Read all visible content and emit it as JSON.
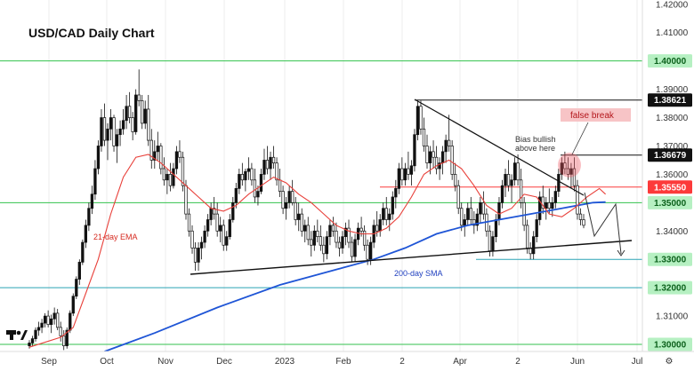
{
  "chart_data": {
    "type": "candlestick",
    "title": "USD/CAD Daily Chart",
    "ylim": [
      1.2975,
      1.4215
    ],
    "y_ticks": [
      "1.42000",
      "1.41000",
      "1.40000",
      "1.39000",
      "1.38621",
      "1.38000",
      "1.37000",
      "1.36679",
      "1.36000",
      "1.35550",
      "1.35000",
      "1.34000",
      "1.33000",
      "1.32000",
      "1.31000",
      "1.30000"
    ],
    "x_ticks": [
      "Sep",
      "Oct",
      "Nov",
      "Dec",
      "2023",
      "Feb",
      "2",
      "Apr",
      "2",
      "Jun",
      "Jul"
    ],
    "badges": [
      {
        "label": "1.40000",
        "value": 1.4,
        "bg": "#b6f0c2",
        "fg": "#0a5f1a"
      },
      {
        "label": "1.38621",
        "value": 1.38621,
        "bg": "#111111",
        "fg": "#ffffff"
      },
      {
        "label": "1.36679",
        "value": 1.36679,
        "bg": "#111111",
        "fg": "#ffffff"
      },
      {
        "label": "1.35550",
        "value": 1.3555,
        "bg": "#fc3a3a",
        "fg": "#ffffff"
      },
      {
        "label": "1.35000",
        "value": 1.35,
        "bg": "#b6f0c2",
        "fg": "#0a5f1a"
      },
      {
        "label": "1.33000",
        "value": 1.33,
        "bg": "#b6f0c2",
        "fg": "#0a5f1a"
      },
      {
        "label": "1.32000",
        "value": 1.32,
        "bg": "#b6f0c2",
        "fg": "#0a5f1a"
      },
      {
        "label": "1.30000",
        "value": 1.3,
        "bg": "#b6f0c2",
        "fg": "#0a5f1a"
      }
    ],
    "ohlc": [
      [
        1.2995,
        1.3015,
        1.2985,
        1.3005
      ],
      [
        1.3005,
        1.303,
        1.2995,
        1.302
      ],
      [
        1.302,
        1.306,
        1.301,
        1.305
      ],
      [
        1.305,
        1.308,
        1.303,
        1.306
      ],
      [
        1.306,
        1.309,
        1.304,
        1.3075
      ],
      [
        1.3075,
        1.311,
        1.306,
        1.31
      ],
      [
        1.31,
        1.312,
        1.306,
        1.307
      ],
      [
        1.307,
        1.3105,
        1.304,
        1.309
      ],
      [
        1.309,
        1.313,
        1.307,
        1.311
      ],
      [
        1.311,
        1.3125,
        1.305,
        1.306
      ],
      [
        1.306,
        1.308,
        1.301,
        1.303
      ],
      [
        1.303,
        1.305,
        1.298,
        1.2995
      ],
      [
        1.2995,
        1.306,
        1.2985,
        1.305
      ],
      [
        1.305,
        1.312,
        1.304,
        1.311
      ],
      [
        1.311,
        1.318,
        1.31,
        1.317
      ],
      [
        1.317,
        1.324,
        1.316,
        1.323
      ],
      [
        1.323,
        1.33,
        1.321,
        1.329
      ],
      [
        1.329,
        1.337,
        1.328,
        1.336
      ],
      [
        1.336,
        1.344,
        1.334,
        1.342
      ],
      [
        1.342,
        1.35,
        1.34,
        1.348
      ],
      [
        1.348,
        1.356,
        1.346,
        1.353
      ],
      [
        1.353,
        1.365,
        1.351,
        1.362
      ],
      [
        1.362,
        1.372,
        1.36,
        1.37
      ],
      [
        1.37,
        1.383,
        1.368,
        1.38
      ],
      [
        1.38,
        1.385,
        1.37,
        1.372
      ],
      [
        1.372,
        1.378,
        1.365,
        1.376
      ],
      [
        1.376,
        1.383,
        1.372,
        1.38
      ],
      [
        1.38,
        1.381,
        1.368,
        1.37
      ],
      [
        1.37,
        1.376,
        1.364,
        1.374
      ],
      [
        1.374,
        1.379,
        1.37,
        1.376
      ],
      [
        1.376,
        1.383,
        1.374,
        1.379
      ],
      [
        1.379,
        1.388,
        1.376,
        1.384
      ],
      [
        1.384,
        1.389,
        1.378,
        1.38
      ],
      [
        1.38,
        1.382,
        1.372,
        1.375
      ],
      [
        1.375,
        1.39,
        1.374,
        1.388
      ],
      [
        1.388,
        1.397,
        1.384,
        1.386
      ],
      [
        1.386,
        1.388,
        1.376,
        1.378
      ],
      [
        1.378,
        1.386,
        1.376,
        1.383
      ],
      [
        1.383,
        1.388,
        1.37,
        1.372
      ],
      [
        1.372,
        1.376,
        1.362,
        1.365
      ],
      [
        1.365,
        1.372,
        1.362,
        1.368
      ],
      [
        1.368,
        1.375,
        1.365,
        1.37
      ],
      [
        1.37,
        1.371,
        1.36,
        1.362
      ],
      [
        1.362,
        1.366,
        1.356,
        1.358
      ],
      [
        1.358,
        1.362,
        1.353,
        1.36
      ],
      [
        1.36,
        1.364,
        1.354,
        1.356
      ],
      [
        1.356,
        1.364,
        1.355,
        1.362
      ],
      [
        1.362,
        1.37,
        1.36,
        1.368
      ],
      [
        1.368,
        1.372,
        1.364,
        1.366
      ],
      [
        1.366,
        1.368,
        1.354,
        1.356
      ],
      [
        1.356,
        1.358,
        1.344,
        1.346
      ],
      [
        1.346,
        1.348,
        1.338,
        1.34
      ],
      [
        1.34,
        1.342,
        1.332,
        1.334
      ],
      [
        1.334,
        1.336,
        1.326,
        1.329
      ],
      [
        1.329,
        1.336,
        1.326,
        1.334
      ],
      [
        1.334,
        1.338,
        1.33,
        1.336
      ],
      [
        1.336,
        1.342,
        1.334,
        1.34
      ],
      [
        1.34,
        1.346,
        1.338,
        1.344
      ],
      [
        1.344,
        1.35,
        1.342,
        1.348
      ],
      [
        1.348,
        1.352,
        1.344,
        1.346
      ],
      [
        1.346,
        1.35,
        1.338,
        1.34
      ],
      [
        1.34,
        1.345,
        1.336,
        1.342
      ],
      [
        1.342,
        1.344,
        1.333,
        1.335
      ],
      [
        1.335,
        1.34,
        1.333,
        1.338
      ],
      [
        1.338,
        1.346,
        1.337,
        1.344
      ],
      [
        1.344,
        1.352,
        1.343,
        1.35
      ],
      [
        1.35,
        1.357,
        1.348,
        1.355
      ],
      [
        1.355,
        1.362,
        1.353,
        1.36
      ],
      [
        1.36,
        1.364,
        1.356,
        1.358
      ],
      [
        1.358,
        1.362,
        1.354,
        1.361
      ],
      [
        1.361,
        1.366,
        1.358,
        1.362
      ],
      [
        1.362,
        1.364,
        1.356,
        1.358
      ],
      [
        1.358,
        1.362,
        1.35,
        1.352
      ],
      [
        1.352,
        1.356,
        1.349,
        1.354
      ],
      [
        1.354,
        1.362,
        1.353,
        1.36
      ],
      [
        1.36,
        1.369,
        1.358,
        1.365
      ],
      [
        1.365,
        1.37,
        1.36,
        1.362
      ],
      [
        1.362,
        1.368,
        1.358,
        1.366
      ],
      [
        1.366,
        1.37,
        1.362,
        1.364
      ],
      [
        1.364,
        1.366,
        1.356,
        1.358
      ],
      [
        1.358,
        1.362,
        1.352,
        1.354
      ],
      [
        1.354,
        1.356,
        1.346,
        1.348
      ],
      [
        1.348,
        1.352,
        1.344,
        1.35
      ],
      [
        1.35,
        1.356,
        1.348,
        1.354
      ],
      [
        1.354,
        1.358,
        1.349,
        1.35
      ],
      [
        1.35,
        1.352,
        1.342,
        1.344
      ],
      [
        1.344,
        1.35,
        1.34,
        1.346
      ],
      [
        1.346,
        1.348,
        1.338,
        1.34
      ],
      [
        1.34,
        1.344,
        1.336,
        1.342
      ],
      [
        1.342,
        1.345,
        1.335,
        1.337
      ],
      [
        1.337,
        1.34,
        1.331,
        1.335
      ],
      [
        1.335,
        1.342,
        1.333,
        1.34
      ],
      [
        1.34,
        1.344,
        1.336,
        1.338
      ],
      [
        1.338,
        1.342,
        1.333,
        1.335
      ],
      [
        1.335,
        1.338,
        1.329,
        1.332
      ],
      [
        1.332,
        1.34,
        1.33,
        1.338
      ],
      [
        1.338,
        1.344,
        1.335,
        1.342
      ],
      [
        1.342,
        1.345,
        1.338,
        1.34
      ],
      [
        1.34,
        1.343,
        1.334,
        1.336
      ],
      [
        1.336,
        1.338,
        1.331,
        1.334
      ],
      [
        1.334,
        1.34,
        1.332,
        1.338
      ],
      [
        1.338,
        1.343,
        1.335,
        1.341
      ],
      [
        1.341,
        1.344,
        1.334,
        1.336
      ],
      [
        1.336,
        1.338,
        1.329,
        1.331
      ],
      [
        1.331,
        1.339,
        1.329,
        1.337
      ],
      [
        1.337,
        1.343,
        1.335,
        1.341
      ],
      [
        1.341,
        1.345,
        1.338,
        1.34
      ],
      [
        1.34,
        1.342,
        1.333,
        1.335
      ],
      [
        1.335,
        1.337,
        1.328,
        1.33
      ],
      [
        1.33,
        1.338,
        1.328,
        1.336
      ],
      [
        1.336,
        1.344,
        1.334,
        1.342
      ],
      [
        1.342,
        1.347,
        1.338,
        1.34
      ],
      [
        1.34,
        1.346,
        1.338,
        1.344
      ],
      [
        1.344,
        1.35,
        1.342,
        1.348
      ],
      [
        1.348,
        1.352,
        1.342,
        1.344
      ],
      [
        1.344,
        1.348,
        1.34,
        1.346
      ],
      [
        1.346,
        1.354,
        1.344,
        1.352
      ],
      [
        1.352,
        1.358,
        1.348,
        1.355
      ],
      [
        1.355,
        1.364,
        1.353,
        1.362
      ],
      [
        1.362,
        1.366,
        1.356,
        1.358
      ],
      [
        1.358,
        1.364,
        1.356,
        1.362
      ],
      [
        1.362,
        1.368,
        1.358,
        1.36
      ],
      [
        1.36,
        1.365,
        1.356,
        1.363
      ],
      [
        1.363,
        1.376,
        1.361,
        1.374
      ],
      [
        1.374,
        1.386,
        1.372,
        1.384
      ],
      [
        1.384,
        1.386,
        1.374,
        1.376
      ],
      [
        1.376,
        1.38,
        1.368,
        1.37
      ],
      [
        1.37,
        1.374,
        1.362,
        1.364
      ],
      [
        1.364,
        1.37,
        1.36,
        1.368
      ],
      [
        1.368,
        1.372,
        1.362,
        1.366
      ],
      [
        1.366,
        1.37,
        1.36,
        1.362
      ],
      [
        1.362,
        1.366,
        1.358,
        1.364
      ],
      [
        1.364,
        1.37,
        1.36,
        1.368
      ],
      [
        1.368,
        1.374,
        1.364,
        1.372
      ],
      [
        1.372,
        1.381,
        1.368,
        1.37
      ],
      [
        1.37,
        1.372,
        1.358,
        1.36
      ],
      [
        1.36,
        1.364,
        1.354,
        1.356
      ],
      [
        1.356,
        1.358,
        1.346,
        1.348
      ],
      [
        1.348,
        1.35,
        1.34,
        1.342
      ],
      [
        1.342,
        1.346,
        1.338,
        1.344
      ],
      [
        1.344,
        1.35,
        1.342,
        1.348
      ],
      [
        1.348,
        1.352,
        1.342,
        1.344
      ],
      [
        1.344,
        1.347,
        1.339,
        1.342
      ],
      [
        1.342,
        1.348,
        1.34,
        1.346
      ],
      [
        1.346,
        1.352,
        1.343,
        1.35
      ],
      [
        1.35,
        1.354,
        1.344,
        1.346
      ],
      [
        1.346,
        1.348,
        1.338,
        1.34
      ],
      [
        1.34,
        1.342,
        1.331,
        1.333
      ],
      [
        1.333,
        1.34,
        1.331,
        1.338
      ],
      [
        1.338,
        1.346,
        1.336,
        1.344
      ],
      [
        1.344,
        1.352,
        1.342,
        1.35
      ],
      [
        1.35,
        1.358,
        1.348,
        1.356
      ],
      [
        1.356,
        1.362,
        1.352,
        1.36
      ],
      [
        1.36,
        1.365,
        1.354,
        1.356
      ],
      [
        1.356,
        1.36,
        1.35,
        1.358
      ],
      [
        1.358,
        1.366,
        1.356,
        1.364
      ],
      [
        1.364,
        1.367,
        1.356,
        1.358
      ],
      [
        1.358,
        1.362,
        1.348,
        1.35
      ],
      [
        1.35,
        1.352,
        1.34,
        1.342
      ],
      [
        1.342,
        1.344,
        1.332,
        1.334
      ],
      [
        1.334,
        1.336,
        1.33,
        1.332
      ],
      [
        1.332,
        1.34,
        1.33,
        1.338
      ],
      [
        1.338,
        1.346,
        1.336,
        1.344
      ],
      [
        1.344,
        1.354,
        1.342,
        1.352
      ],
      [
        1.352,
        1.356,
        1.346,
        1.348
      ],
      [
        1.348,
        1.352,
        1.344,
        1.35
      ],
      [
        1.35,
        1.355,
        1.346,
        1.348
      ],
      [
        1.348,
        1.352,
        1.345,
        1.35
      ],
      [
        1.35,
        1.356,
        1.348,
        1.354
      ],
      [
        1.354,
        1.362,
        1.352,
        1.36
      ],
      [
        1.36,
        1.366,
        1.358,
        1.364
      ],
      [
        1.364,
        1.368,
        1.36,
        1.362
      ],
      [
        1.362,
        1.366,
        1.358,
        1.36
      ],
      [
        1.36,
        1.364,
        1.355,
        1.362
      ],
      [
        1.362,
        1.366,
        1.354,
        1.356
      ],
      [
        1.356,
        1.358,
        1.344,
        1.346
      ],
      [
        1.346,
        1.348,
        1.342,
        1.344
      ],
      [
        1.344,
        1.346,
        1.341,
        1.342
      ]
    ],
    "ema21": [
      [
        0,
        1.299
      ],
      [
        10,
        1.3025
      ],
      [
        14,
        1.306
      ],
      [
        18,
        1.318
      ],
      [
        22,
        1.33
      ],
      [
        26,
        1.346
      ],
      [
        30,
        1.359
      ],
      [
        34,
        1.366
      ],
      [
        38,
        1.367
      ],
      [
        42,
        1.364
      ],
      [
        46,
        1.36
      ],
      [
        50,
        1.356
      ],
      [
        54,
        1.352
      ],
      [
        58,
        1.348
      ],
      [
        62,
        1.347
      ],
      [
        66,
        1.349
      ],
      [
        70,
        1.353
      ],
      [
        74,
        1.356
      ],
      [
        78,
        1.359
      ],
      [
        82,
        1.357
      ],
      [
        86,
        1.353
      ],
      [
        90,
        1.35
      ],
      [
        94,
        1.346
      ],
      [
        98,
        1.342
      ],
      [
        102,
        1.34
      ],
      [
        106,
        1.339
      ],
      [
        110,
        1.339
      ],
      [
        114,
        1.341
      ],
      [
        118,
        1.345
      ],
      [
        122,
        1.352
      ],
      [
        126,
        1.36
      ],
      [
        130,
        1.363
      ],
      [
        134,
        1.365
      ],
      [
        138,
        1.362
      ],
      [
        142,
        1.356
      ],
      [
        146,
        1.349
      ],
      [
        150,
        1.346
      ],
      [
        154,
        1.348
      ],
      [
        158,
        1.353
      ],
      [
        162,
        1.352
      ],
      [
        166,
        1.346
      ],
      [
        170,
        1.345
      ],
      [
        174,
        1.348
      ],
      [
        178,
        1.352
      ],
      [
        182,
        1.355
      ],
      [
        184,
        1.353
      ]
    ],
    "sma200": [
      [
        24,
        1.2975
      ],
      [
        40,
        1.304
      ],
      [
        60,
        1.313
      ],
      [
        80,
        1.321
      ],
      [
        100,
        1.327
      ],
      [
        110,
        1.33
      ],
      [
        120,
        1.334
      ],
      [
        130,
        1.339
      ],
      [
        140,
        1.342
      ],
      [
        150,
        1.344
      ],
      [
        160,
        1.346
      ],
      [
        170,
        1.348
      ],
      [
        180,
        1.35
      ],
      [
        184,
        1.3502
      ]
    ],
    "annotations": {
      "ema_label": "21-day EMA",
      "sma_label": "200-day SMA",
      "bias": [
        "Bias bullish",
        "above here"
      ],
      "false_break": "false break"
    },
    "colors": {
      "up": "#111111",
      "down_fill": "#ffffff",
      "ema": "#e8403a",
      "sma": "#1f55d6",
      "green_line": "#33c24d",
      "red_line": "#fc3a3a",
      "teal_line": "#2aa3b5",
      "trend": "#111111"
    }
  }
}
